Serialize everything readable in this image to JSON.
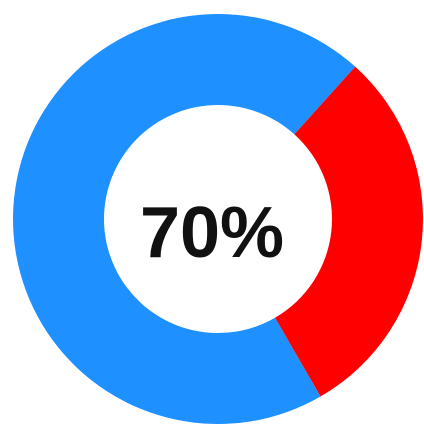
{
  "chart_data": {
    "type": "pie",
    "donut": true,
    "center_label": "70%",
    "slices": [
      {
        "value": 70,
        "color": "#1e90ff"
      },
      {
        "value": 30,
        "color": "#ff0000"
      }
    ]
  }
}
